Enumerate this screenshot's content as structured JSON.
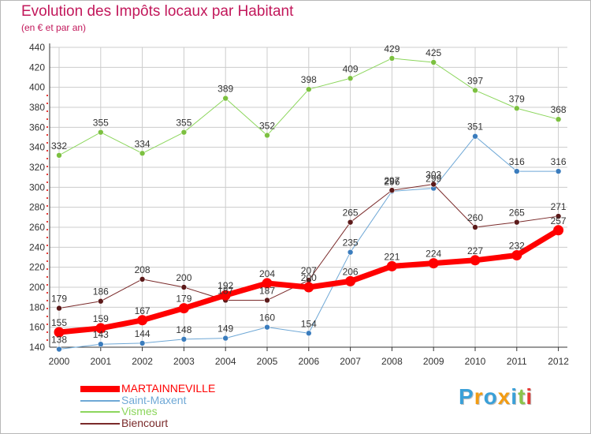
{
  "header": {
    "title": "Evolution des Impôts locaux par Habitant",
    "subtitle": "(en € et par an)"
  },
  "logo": {
    "text": "Proxiti",
    "letters": [
      {
        "ch": "P",
        "color": "#3aa0d8"
      },
      {
        "ch": "r",
        "color": "#f39c12"
      },
      {
        "ch": "o",
        "color": "#3aa0d8"
      },
      {
        "ch": "x",
        "color": "#f39c12"
      },
      {
        "ch": "i",
        "color": "#3aa0d8"
      },
      {
        "ch": "t",
        "color": "#8bc34a"
      },
      {
        "ch": "i",
        "color": "#e53935"
      }
    ]
  },
  "colors": {
    "title": "#c2185b",
    "grid": "#cccccc",
    "axis": "#333333"
  },
  "chart_data": {
    "type": "line",
    "title": "Evolution des Impôts locaux par Habitant",
    "subtitle": "(en € et par an)",
    "xlabel": "",
    "ylabel": "",
    "x": [
      "2000",
      "2001",
      "2002",
      "2003",
      "2004",
      "2005",
      "2006",
      "2007",
      "2008",
      "2009",
      "2010",
      "2011",
      "2012"
    ],
    "ylim": [
      140,
      440
    ],
    "yticks": [
      140,
      160,
      180,
      200,
      220,
      240,
      260,
      280,
      300,
      320,
      340,
      360,
      380,
      400,
      420,
      440
    ],
    "grid": true,
    "legend_position": "bottom-left",
    "series": [
      {
        "name": "Vismes",
        "color": "#8cd65c",
        "marker_color": "#7cc040",
        "line_width": 1,
        "values": [
          332,
          355,
          334,
          355,
          389,
          352,
          398,
          409,
          429,
          425,
          397,
          379,
          368
        ]
      },
      {
        "name": "Saint-Maxent",
        "color": "#6fa8d6",
        "marker_color": "#3a7cbd",
        "line_width": 1,
        "values": [
          138,
          143,
          144,
          148,
          149,
          160,
          154,
          235,
          296,
          299,
          351,
          316,
          316
        ]
      },
      {
        "name": "Biencourt",
        "color": "#7a2a2a",
        "marker_color": "#5c1a1a",
        "line_width": 1,
        "values": [
          179,
          186,
          208,
          200,
          187,
          187,
          207,
          265,
          297,
          303,
          260,
          265,
          271
        ]
      },
      {
        "name": "MARTAINNEVILLE",
        "color": "#ff0000",
        "marker_color": "#ff0000",
        "line_width": 7,
        "values": [
          155,
          159,
          167,
          179,
          192,
          204,
          200,
          206,
          221,
          224,
          227,
          232,
          257
        ]
      }
    ],
    "legend_order": [
      "MARTAINNEVILLE",
      "Saint-Maxent",
      "Vismes",
      "Biencourt"
    ]
  }
}
